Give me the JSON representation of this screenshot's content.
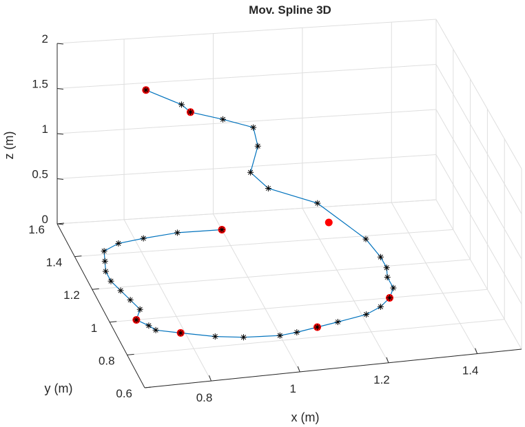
{
  "chart_data": {
    "type": "line3d",
    "title": "Mov. Spline 3D",
    "xlabel": "x (m)",
    "ylabel": "y (m)",
    "zlabel": "z (m)",
    "xlim": [
      0.65,
      1.5
    ],
    "ylim": [
      0.6,
      1.6
    ],
    "zlim": [
      0,
      2
    ],
    "xticks": [
      0.8,
      1,
      1.2,
      1.4
    ],
    "xtick_labels": [
      "0.8",
      "1",
      "1.2",
      "1.4"
    ],
    "yticks": [
      0.6,
      0.8,
      1,
      1.2,
      1.4,
      1.6
    ],
    "ytick_labels": [
      "0.6",
      "0.8",
      "1",
      "1.2",
      "1.4",
      "1.6"
    ],
    "zticks": [
      0,
      0.5,
      1,
      1.5,
      2
    ],
    "ztick_labels": [
      "0",
      "0.5",
      "1",
      "1.5",
      "2"
    ],
    "grid": true,
    "colors": {
      "line": "#0072bd",
      "waypoint": "#ff0000",
      "sample": "#000000",
      "grid": "#dedede",
      "axis": "#262626"
    },
    "series": [
      {
        "marker": "dot",
        "points": [
          [
            1.0,
            1.5,
            0.0
          ],
          [
            0.71,
            1.0,
            0.0
          ],
          [
            0.79,
            0.9,
            0.0
          ],
          [
            1.09,
            0.86,
            0.0
          ],
          [
            1.28,
            1.0,
            0.0
          ],
          [
            1.24,
            1.5,
            0.0
          ],
          [
            0.91,
            1.4,
            1.51
          ],
          [
            0.81,
            1.4,
            1.79
          ]
        ]
      },
      {
        "marker": "asterisk",
        "points": [
          [
            1.0,
            1.5,
            0.0
          ],
          [
            0.9,
            1.5,
            0.0
          ],
          [
            0.82,
            1.48,
            0.0
          ],
          [
            0.76,
            1.46,
            0.0
          ],
          [
            0.72,
            1.42,
            0.0
          ],
          [
            0.71,
            1.36,
            0.0
          ],
          [
            0.7,
            1.3,
            0.0
          ],
          [
            0.7,
            1.24,
            0.0
          ],
          [
            0.71,
            1.18,
            0.0
          ],
          [
            0.72,
            1.12,
            0.0
          ],
          [
            0.73,
            1.06,
            0.0
          ],
          [
            0.71,
            1.0,
            0.0
          ],
          [
            0.73,
            0.96,
            0.0
          ],
          [
            0.74,
            0.93,
            0.0
          ],
          [
            0.79,
            0.9,
            0.0
          ],
          [
            0.86,
            0.86,
            0.0
          ],
          [
            0.92,
            0.84,
            0.0
          ],
          [
            1.0,
            0.83,
            0.0
          ],
          [
            1.04,
            0.84,
            0.0
          ],
          [
            1.09,
            0.86,
            0.0
          ],
          [
            1.14,
            0.88,
            0.0
          ],
          [
            1.21,
            0.91,
            0.0
          ],
          [
            1.25,
            0.95,
            0.0
          ],
          [
            1.28,
            1.0,
            0.0
          ],
          [
            1.3,
            1.06,
            0.0
          ],
          [
            1.3,
            1.13,
            0.0
          ],
          [
            1.31,
            1.19,
            0.0
          ],
          [
            1.31,
            1.26,
            0.0
          ],
          [
            1.3,
            1.38,
            0.0
          ],
          [
            1.23,
            1.58,
            0.08
          ],
          [
            1.11,
            1.53,
            0.37
          ],
          [
            1.07,
            1.53,
            0.56
          ],
          [
            1.1,
            1.6,
            0.72
          ],
          [
            1.09,
            1.6,
            0.93
          ],
          [
            1.01,
            1.54,
            1.15
          ],
          [
            0.91,
            1.4,
            1.51
          ],
          [
            0.89,
            1.4,
            1.6
          ],
          [
            0.81,
            1.4,
            1.79
          ]
        ]
      }
    ]
  }
}
